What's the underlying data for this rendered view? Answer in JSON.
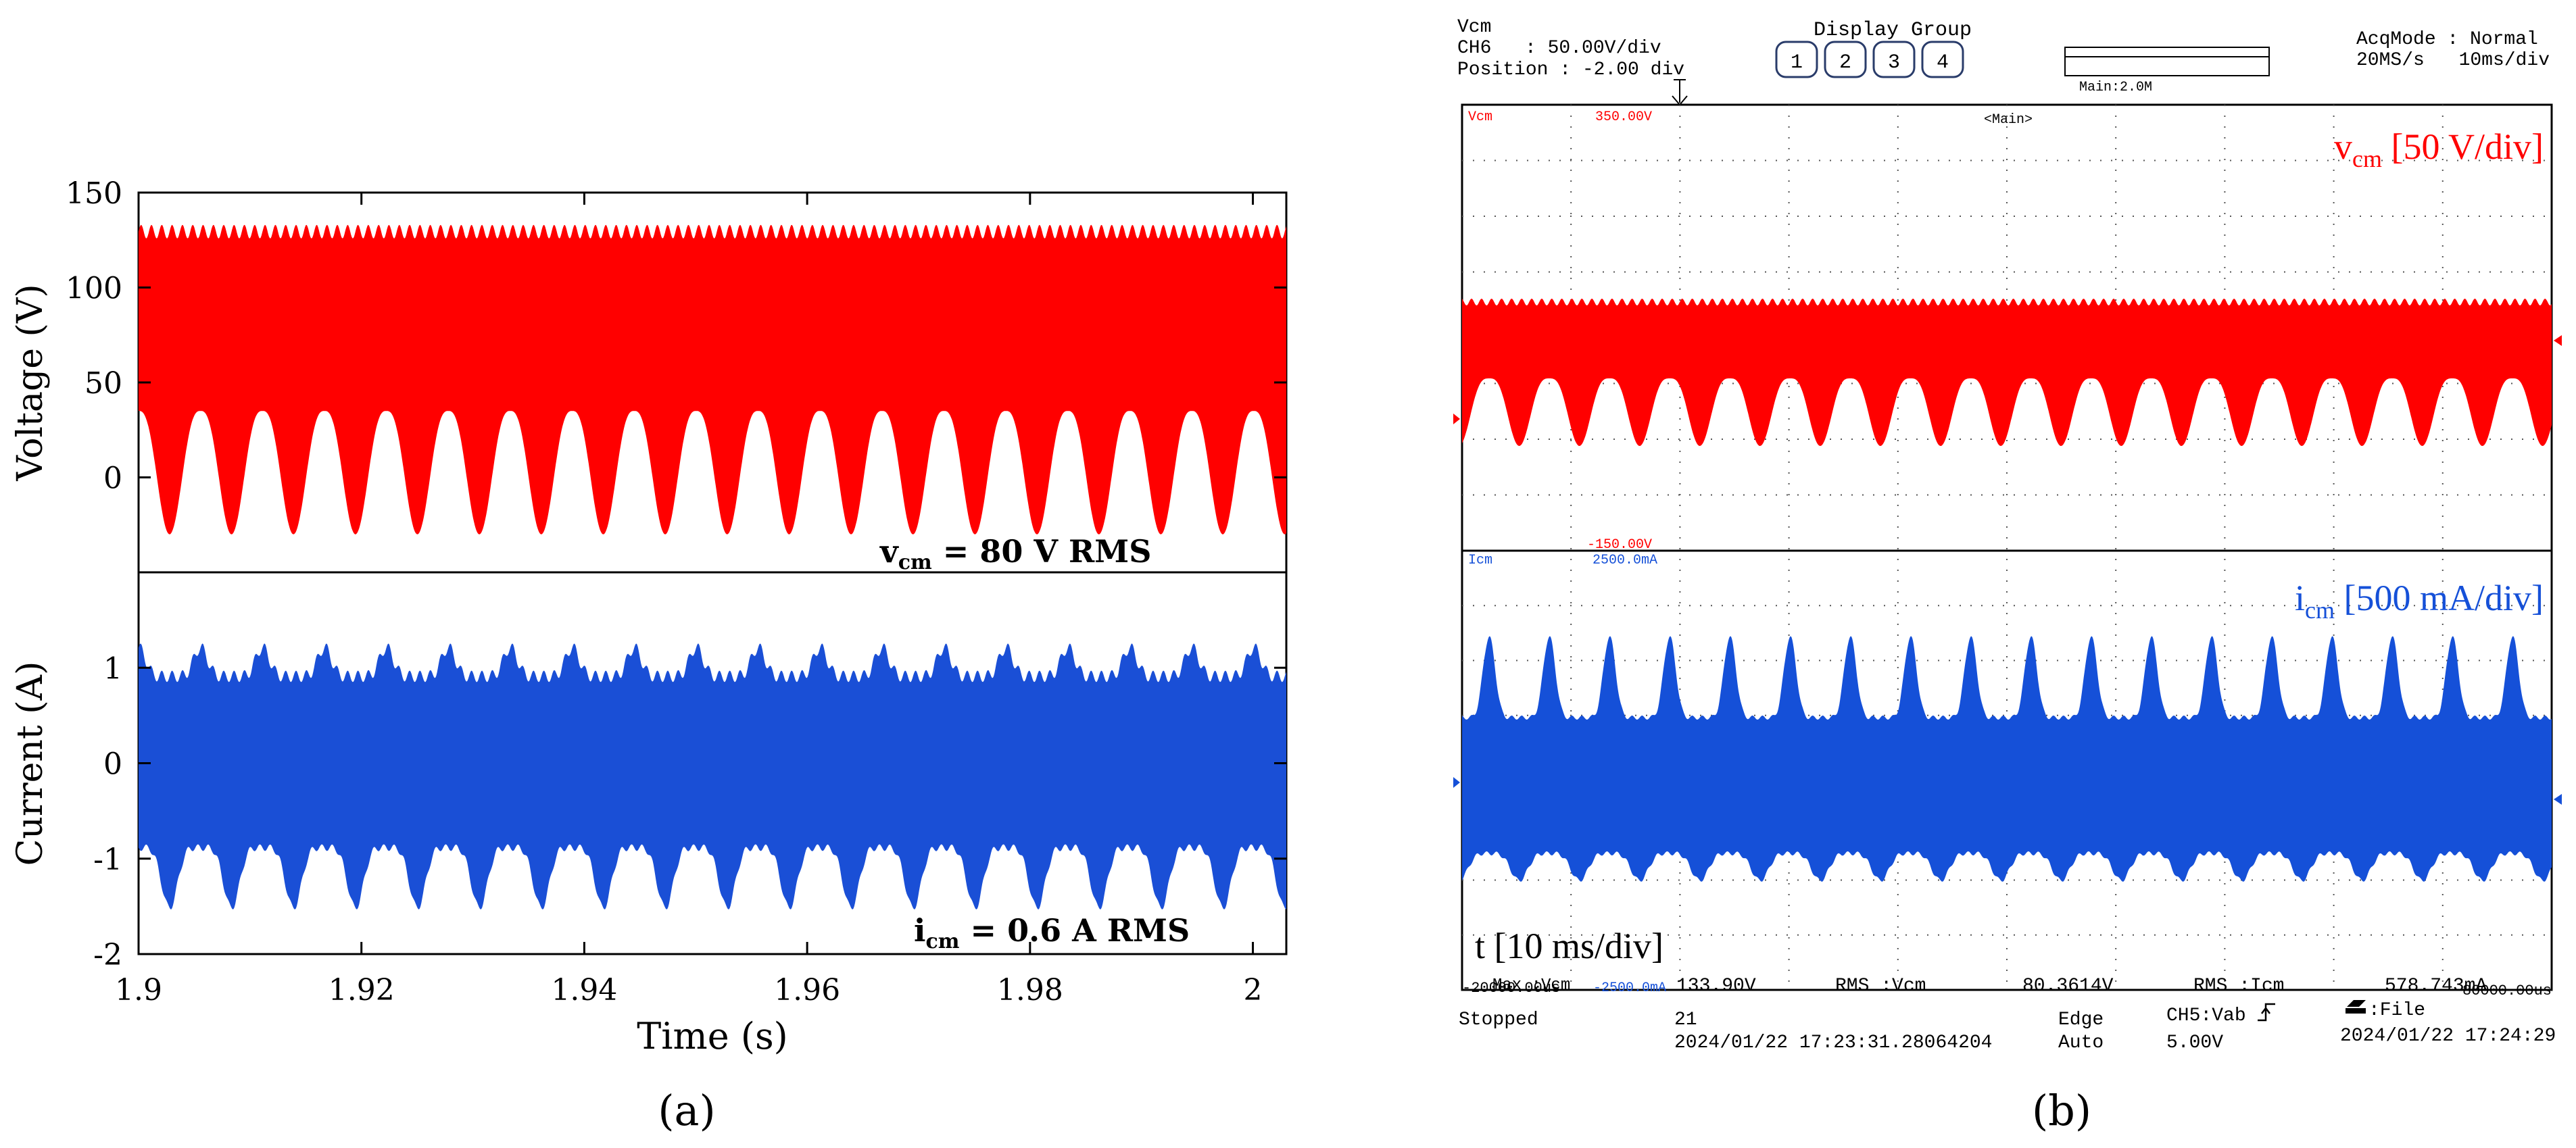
{
  "panel_a": {
    "caption": "(a)",
    "chart_data": [
      {
        "type": "area",
        "ylabel": "Voltage (V)",
        "xlim": [
          1.9,
          2.003
        ],
        "ylim": [
          -50,
          150
        ],
        "yticks": [
          0,
          50,
          100,
          150
        ],
        "annotation": {
          "main": "v",
          "sub": "cm",
          "rest": " = 80 V RMS"
        },
        "color": "#ff0000",
        "series": [
          {
            "x_start": 1.9,
            "x_end": 2.003,
            "min_env_lo": -30,
            "min_env_hi": 35,
            "max_env_lo": 122,
            "max_env_hi": 133,
            "period_s": 0.00556
          }
        ]
      },
      {
        "type": "area",
        "xlabel": "Time (s)",
        "ylabel": "Current (A)",
        "xlim": [
          1.9,
          2.003
        ],
        "ylim": [
          -2,
          2
        ],
        "xticks": [
          1.9,
          1.92,
          1.94,
          1.96,
          1.98,
          2
        ],
        "xtick_labels": [
          "1.9",
          "1.92",
          "1.94",
          "1.96",
          "1.98",
          "2"
        ],
        "yticks": [
          -2,
          -1,
          0,
          1
        ],
        "annotation": {
          "main": "i",
          "sub": "cm",
          "rest": " = 0.6 A RMS"
        },
        "color": "#1a4fd6",
        "series": [
          {
            "x_start": 1.9,
            "x_end": 2.003,
            "min_env_lo": -1.55,
            "min_env_hi": -0.85,
            "max_env_lo": 0.85,
            "max_env_hi": 1.35,
            "period_s": 0.00556
          }
        ]
      }
    ]
  },
  "panel_b": {
    "caption": "(b)",
    "header": {
      "ch_name": "Vcm",
      "ch_id": "CH6",
      "volts_div": ": 50.00V/div",
      "position": "Position : -2.00 div",
      "display_group_label": "Display Group",
      "groups": [
        "1",
        "2",
        "3",
        "4"
      ],
      "main_label": "Main:2.0M",
      "acq_mode": "AcqMode : Normal",
      "rate": "20MS/s",
      "time_div": "10ms/div"
    },
    "screen": {
      "main_tag": "<Main>",
      "ch1_name": "Vcm",
      "ch1_top": "350.00V",
      "ch1_bottom": "-150.00V",
      "ch2_name": "Icm",
      "ch2_top": "2500.0mA",
      "ch2_bottom": "-2500.0mA",
      "label_v_main": "v",
      "label_v_sub": "cm",
      "label_v_rest": " [50 V/div]",
      "label_i_main": "i",
      "label_i_sub": "cm",
      "label_i_rest": " [500 mA/div]",
      "label_t": "t [10 ms/div]",
      "bottom_left": "-20000.00us",
      "bottom_right": "80000.00us",
      "colors": {
        "v": "#ff0000",
        "i": "#1550d8"
      }
    },
    "footer": {
      "max_label": "Max :Vcm",
      "max_value": "133.90V",
      "rms1_label": "RMS  :Vcm",
      "rms1_value": "80.3614V",
      "rms2_label": "RMS  :Icm",
      "rms2_value": "578.743mA",
      "status": "Stopped",
      "count": "21",
      "datetime": "2024/01/22 17:23:31.28064204",
      "trig_type": "Edge",
      "trig_mode": "Auto",
      "trig_src": "CH5:Vab",
      "trig_level": "5.00V",
      "file_label": ":File",
      "file_time": "2024/01/22 17:24:29"
    }
  }
}
